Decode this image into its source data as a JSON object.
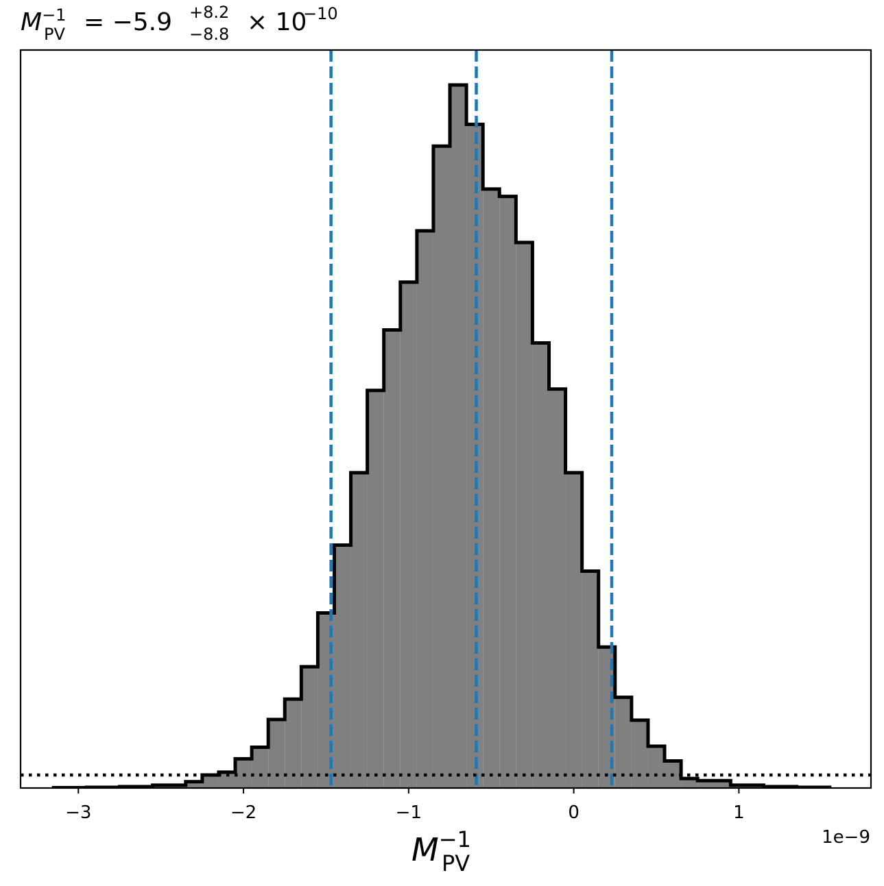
{
  "chart_data": {
    "type": "histogram",
    "title": {
      "symbol": "M",
      "sub": "PV",
      "sup": "−1",
      "equals": "= −5.9",
      "err_plus": "+8.2",
      "err_minus": "−8.8",
      "times": "× 10",
      "exponent": "−10"
    },
    "xlabel": {
      "symbol": "M",
      "sub": "PV",
      "sup": "−1"
    },
    "offset_text": "1e−9",
    "xlim": [
      -3.35,
      1.8
    ],
    "ylim": [
      0,
      1.0
    ],
    "x_ticks": [
      {
        "value": -3,
        "label": "−3"
      },
      {
        "value": -2,
        "label": "−2"
      },
      {
        "value": -1,
        "label": "−1"
      },
      {
        "value": 0,
        "label": "0"
      },
      {
        "value": 1,
        "label": "1"
      }
    ],
    "y_ticks": [],
    "bins": [
      {
        "x0": -3.15,
        "x1": -2.95,
        "y": 0.0005
      },
      {
        "x0": -2.95,
        "x1": -2.75,
        "y": 0.001
      },
      {
        "x0": -2.75,
        "x1": -2.55,
        "y": 0.002
      },
      {
        "x0": -2.55,
        "x1": -2.35,
        "y": 0.004
      },
      {
        "x0": -2.35,
        "x1": -2.25,
        "y": 0.009
      },
      {
        "x0": -2.25,
        "x1": -2.15,
        "y": 0.0185
      },
      {
        "x0": -2.15,
        "x1": -2.05,
        "y": 0.0225
      },
      {
        "x0": -2.05,
        "x1": -1.95,
        "y": 0.0415
      },
      {
        "x0": -1.95,
        "x1": -1.85,
        "y": 0.058
      },
      {
        "x0": -1.85,
        "x1": -1.75,
        "y": 0.0975
      },
      {
        "x0": -1.75,
        "x1": -1.65,
        "y": 0.1265
      },
      {
        "x0": -1.65,
        "x1": -1.55,
        "y": 0.1725
      },
      {
        "x0": -1.55,
        "x1": -1.45,
        "y": 0.249
      },
      {
        "x0": -1.45,
        "x1": -1.35,
        "y": 0.3455
      },
      {
        "x0": -1.35,
        "x1": -1.25,
        "y": 0.4485
      },
      {
        "x0": -1.25,
        "x1": -1.15,
        "y": 0.5655
      },
      {
        "x0": -1.15,
        "x1": -1.05,
        "y": 0.6515
      },
      {
        "x0": -1.05,
        "x1": -0.95,
        "y": 0.7195
      },
      {
        "x0": -0.95,
        "x1": -0.85,
        "y": 0.7925
      },
      {
        "x0": -0.85,
        "x1": -0.75,
        "y": 0.913
      },
      {
        "x0": -0.75,
        "x1": -0.65,
        "y": 1.0
      },
      {
        "x0": -0.65,
        "x1": -0.55,
        "y": 0.944
      },
      {
        "x0": -0.55,
        "x1": -0.45,
        "y": 0.852
      },
      {
        "x0": -0.45,
        "x1": -0.35,
        "y": 0.8415
      },
      {
        "x0": -0.35,
        "x1": -0.25,
        "y": 0.776
      },
      {
        "x0": -0.25,
        "x1": -0.15,
        "y": 0.633
      },
      {
        "x0": -0.15,
        "x1": -0.05,
        "y": 0.5675
      },
      {
        "x0": -0.05,
        "x1": 0.05,
        "y": 0.4485
      },
      {
        "x0": 0.05,
        "x1": 0.15,
        "y": 0.3085
      },
      {
        "x0": 0.15,
        "x1": 0.25,
        "y": 0.2005
      },
      {
        "x0": 0.25,
        "x1": 0.35,
        "y": 0.129
      },
      {
        "x0": 0.35,
        "x1": 0.45,
        "y": 0.0965
      },
      {
        "x0": 0.45,
        "x1": 0.55,
        "y": 0.0595
      },
      {
        "x0": 0.55,
        "x1": 0.65,
        "y": 0.0385
      },
      {
        "x0": 0.65,
        "x1": 0.75,
        "y": 0.0135
      },
      {
        "x0": 0.75,
        "x1": 0.95,
        "y": 0.0105
      },
      {
        "x0": 0.95,
        "x1": 1.15,
        "y": 0.004
      },
      {
        "x0": 1.15,
        "x1": 1.35,
        "y": 0.002
      },
      {
        "x0": 1.35,
        "x1": 1.55,
        "y": 0.001
      }
    ],
    "quantile_lines": [
      -1.47,
      -0.59,
      0.23
    ],
    "threshold_line": 0.0185,
    "fill_color": "#808080",
    "edge_color": "#000000",
    "quantile_color": "#1f77b4",
    "grid": false,
    "legend": "none"
  }
}
